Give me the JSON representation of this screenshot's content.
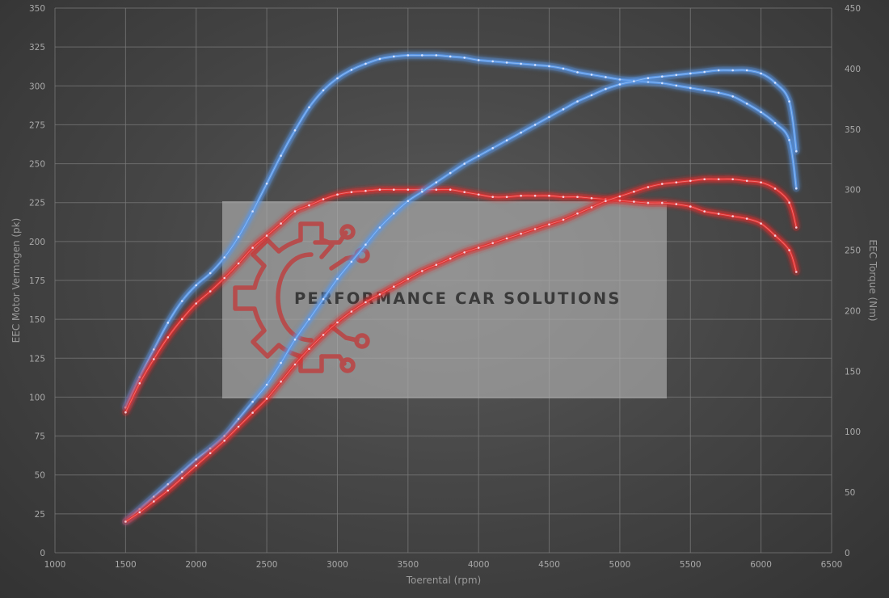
{
  "chart_data": {
    "type": "line",
    "xlabel": "Toerental (rpm)",
    "ylabel_left": "EEC Motor Vermogen (pk)",
    "ylabel_right": "EEC Torque (Nm)",
    "xlim": [
      1000,
      6500
    ],
    "ylim_left": [
      0,
      350
    ],
    "ylim_right": [
      0,
      450
    ],
    "x_ticks": [
      "1000",
      "1500",
      "2000",
      "2500",
      "3000",
      "3500",
      "4000",
      "4500",
      "5000",
      "5500",
      "6000",
      "6500"
    ],
    "y_ticks_left": [
      "0",
      "25",
      "50",
      "75",
      "100",
      "125",
      "150",
      "175",
      "200",
      "225",
      "250",
      "275",
      "300",
      "325",
      "350"
    ],
    "y_ticks_right": [
      "0",
      "50",
      "100",
      "150",
      "200",
      "250",
      "300",
      "350",
      "400",
      "450"
    ],
    "grid": true,
    "series": [
      {
        "axis": "right",
        "color": "#5a98e8",
        "x": [
          1500,
          1600,
          1700,
          1800,
          1900,
          2000,
          2100,
          2200,
          2300,
          2400,
          2500,
          2600,
          2700,
          2800,
          2900,
          3000,
          3100,
          3200,
          3300,
          3400,
          3500,
          3600,
          3700,
          3800,
          3900,
          4000,
          4100,
          4200,
          4300,
          4400,
          4500,
          4600,
          4700,
          4800,
          4900,
          5000,
          5100,
          5200,
          5300,
          5400,
          5500,
          5600,
          5700,
          5800,
          5900,
          6000,
          6100,
          6200,
          6250
        ],
        "values": [
          120,
          145,
          168,
          190,
          208,
          221,
          231,
          244,
          261,
          282,
          305,
          328,
          349,
          368,
          382,
          392,
          399,
          404,
          408,
          410,
          411,
          411,
          411,
          410,
          409,
          407,
          406,
          405,
          404,
          403,
          402,
          400,
          397,
          395,
          393,
          391,
          390,
          389,
          388,
          386,
          384,
          382,
          380,
          377,
          371,
          364,
          355,
          341,
          301
        ]
      },
      {
        "axis": "right",
        "color": "#e03030",
        "x": [
          1500,
          1600,
          1700,
          1800,
          1900,
          2000,
          2100,
          2200,
          2300,
          2400,
          2500,
          2600,
          2700,
          2800,
          2900,
          3000,
          3100,
          3200,
          3300,
          3400,
          3500,
          3600,
          3700,
          3800,
          3900,
          4000,
          4100,
          4200,
          4300,
          4400,
          4500,
          4600,
          4700,
          4800,
          4900,
          5000,
          5100,
          5200,
          5300,
          5400,
          5500,
          5600,
          5700,
          5800,
          5900,
          6000,
          6100,
          6200,
          6250
        ],
        "values": [
          116,
          140,
          160,
          178,
          193,
          206,
          216,
          227,
          239,
          252,
          262,
          272,
          282,
          287,
          292,
          296,
          298,
          299,
          300,
          300,
          300,
          300,
          300,
          300,
          298,
          296,
          294,
          294,
          295,
          295,
          295,
          294,
          294,
          293,
          292,
          291,
          290,
          289,
          289,
          288,
          286,
          282,
          280,
          278,
          276,
          272,
          262,
          250,
          232
        ]
      },
      {
        "axis": "left",
        "color": "#5a98e8",
        "x": [
          1500,
          1600,
          1700,
          1800,
          1900,
          2000,
          2100,
          2200,
          2300,
          2400,
          2500,
          2600,
          2700,
          2800,
          2900,
          3000,
          3100,
          3200,
          3300,
          3400,
          3500,
          3600,
          3700,
          3800,
          3900,
          4000,
          4100,
          4200,
          4300,
          4400,
          4500,
          4600,
          4700,
          4800,
          4900,
          5000,
          5100,
          5200,
          5300,
          5400,
          5500,
          5600,
          5700,
          5800,
          5900,
          6000,
          6100,
          6200,
          6250
        ],
        "values": [
          20,
          28,
          36,
          44,
          52,
          60,
          67,
          75,
          86,
          97,
          108,
          122,
          137,
          150,
          163,
          176,
          187,
          198,
          209,
          218,
          226,
          232,
          238,
          244,
          250,
          255,
          260,
          265,
          270,
          275,
          280,
          285,
          290,
          294,
          298,
          301,
          303,
          305,
          306,
          307,
          308,
          309,
          310,
          310,
          310,
          308,
          302,
          290,
          258
        ]
      },
      {
        "axis": "left",
        "color": "#e03030",
        "x": [
          1500,
          1600,
          1700,
          1800,
          1900,
          2000,
          2100,
          2200,
          2300,
          2400,
          2500,
          2600,
          2700,
          2800,
          2900,
          3000,
          3100,
          3200,
          3300,
          3400,
          3500,
          3600,
          3700,
          3800,
          3900,
          4000,
          4100,
          4200,
          4300,
          4400,
          4500,
          4600,
          4700,
          4800,
          4900,
          5000,
          5100,
          5200,
          5300,
          5400,
          5500,
          5600,
          5700,
          5800,
          5900,
          6000,
          6100,
          6200,
          6250
        ],
        "values": [
          20,
          26,
          33,
          40,
          48,
          56,
          64,
          72,
          81,
          90,
          99,
          110,
          121,
          131,
          140,
          148,
          155,
          161,
          166,
          171,
          176,
          181,
          185,
          189,
          193,
          196,
          199,
          202,
          205,
          208,
          211,
          214,
          218,
          222,
          226,
          229,
          232,
          235,
          237,
          238,
          239,
          240,
          240,
          240,
          239,
          238,
          234,
          225,
          209
        ]
      }
    ]
  },
  "watermark": {
    "text": "PERFORMANCE CAR SOLUTIONS",
    "icon": "gear-circuit-icon"
  }
}
